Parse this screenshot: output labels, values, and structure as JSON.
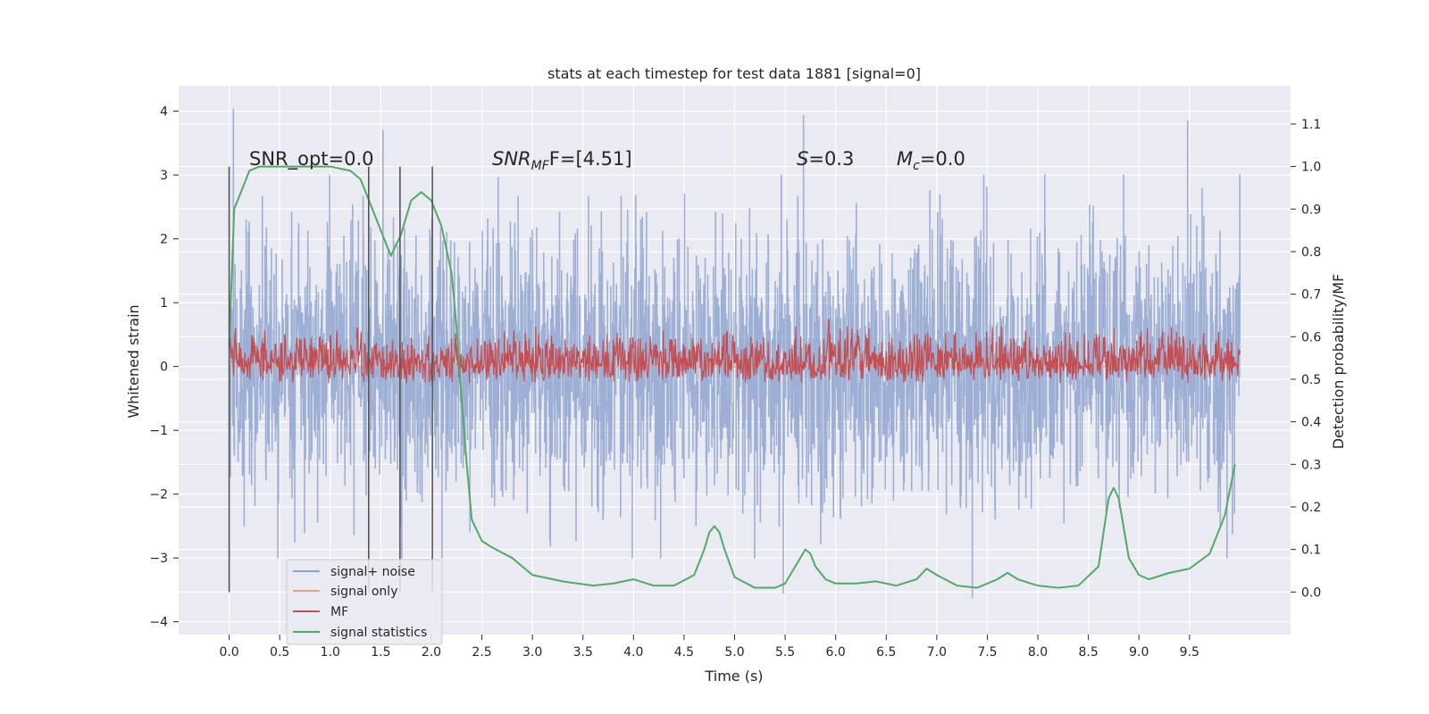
{
  "chart_data": {
    "type": "line",
    "title": "stats at each timestep for test data 1881 [signal=0]",
    "xlabel": "Time (s)",
    "ylabel_left": "Whitened strain",
    "ylabel_right": "Detection probability/MF",
    "xlim": [
      -0.5,
      10.5
    ],
    "ylim_left": [
      -4.2,
      4.4
    ],
    "ylim_right": [
      -0.1,
      1.19
    ],
    "x_ticks": [
      "0.0",
      "0.5",
      "1.0",
      "1.5",
      "2.0",
      "2.5",
      "3.0",
      "3.5",
      "4.0",
      "4.5",
      "5.0",
      "5.5",
      "6.0",
      "6.5",
      "7.0",
      "7.5",
      "8.0",
      "8.5",
      "9.0",
      "9.5"
    ],
    "y_ticks_left": [
      "4",
      "3",
      "2",
      "1",
      "0",
      "−1",
      "−2",
      "−3",
      "−4"
    ],
    "y_ticks_right": [
      "1.1",
      "1.0",
      "0.9",
      "0.8",
      "0.7",
      "0.6",
      "0.5",
      "0.4",
      "0.3",
      "0.2",
      "0.1",
      "0.0"
    ],
    "grid": true,
    "legend": {
      "position": "lower-left",
      "entries": [
        {
          "label": "signal+ noise",
          "color": "#8FA4CF"
        },
        {
          "label": "signal only",
          "color": "#E8A08A"
        },
        {
          "label": "MF",
          "color": "#C44E52"
        },
        {
          "label": "signal statistics",
          "color": "#55A868"
        }
      ]
    },
    "annotations": {
      "snr_opt": "SNR_opt=0.0",
      "snr_mf_base": "SNR",
      "snr_mf_sub": "MF",
      "snr_mf_rest": "F=[4.51]",
      "s_base": "S",
      "s_rest": "=0.3",
      "mc_base": "M",
      "mc_sub": "c",
      "mc_rest": "=0.0"
    },
    "vertical_markers": [
      0.0,
      1.38,
      1.69,
      2.01
    ],
    "series": [
      {
        "name": "signal+ noise",
        "axis": "left",
        "color": "#8FA4CF",
        "x_range": [
          0.0,
          10.0
        ],
        "envelope_typical": [
          -1.7,
          2.6
        ],
        "peaks": [
          [
            0.04,
            4.03
          ],
          [
            1.52,
            3.7
          ],
          [
            5.68,
            3.93
          ],
          [
            9.48,
            3.85
          ],
          [
            5.48,
            -3.55
          ],
          [
            7.35,
            -3.62
          ]
        ]
      },
      {
        "name": "signal only",
        "axis": "left",
        "color": "#E8A08A",
        "x": [
          0.0,
          10.0
        ],
        "y": [
          0.0,
          0.0
        ]
      },
      {
        "name": "MF",
        "axis": "right",
        "color": "#C44E52",
        "x_range": [
          0.0,
          10.0
        ],
        "band_typical": [
          0.48,
          0.58
        ],
        "peaks": [
          [
            5.93,
            0.64
          ],
          [
            1.27,
            0.62
          ],
          [
            7.55,
            0.62
          ]
        ]
      },
      {
        "name": "signal statistics",
        "axis": "right",
        "color": "#55A868",
        "x": [
          0.0,
          0.05,
          0.1,
          0.2,
          0.3,
          0.5,
          0.8,
          1.0,
          1.2,
          1.3,
          1.4,
          1.5,
          1.6,
          1.7,
          1.8,
          1.9,
          2.0,
          2.1,
          2.2,
          2.25,
          2.3,
          2.35,
          2.4,
          2.5,
          2.6,
          2.8,
          3.0,
          3.3,
          3.6,
          3.8,
          4.0,
          4.2,
          4.4,
          4.6,
          4.7,
          4.75,
          4.8,
          4.85,
          4.9,
          5.0,
          5.2,
          5.4,
          5.5,
          5.6,
          5.7,
          5.75,
          5.8,
          5.9,
          6.0,
          6.2,
          6.4,
          6.6,
          6.8,
          6.9,
          7.0,
          7.2,
          7.4,
          7.6,
          7.7,
          7.8,
          8.0,
          8.2,
          8.4,
          8.6,
          8.7,
          8.75,
          8.8,
          8.85,
          8.9,
          9.0,
          9.1,
          9.3,
          9.5,
          9.7,
          9.85,
          9.95
        ],
        "y": [
          0.58,
          0.9,
          0.93,
          0.99,
          1.0,
          1.0,
          1.0,
          1.0,
          0.99,
          0.97,
          0.91,
          0.85,
          0.79,
          0.84,
          0.92,
          0.94,
          0.92,
          0.86,
          0.75,
          0.62,
          0.45,
          0.3,
          0.17,
          0.12,
          0.105,
          0.08,
          0.04,
          0.025,
          0.015,
          0.02,
          0.03,
          0.015,
          0.015,
          0.04,
          0.1,
          0.14,
          0.155,
          0.14,
          0.1,
          0.035,
          0.01,
          0.01,
          0.02,
          0.06,
          0.1,
          0.09,
          0.06,
          0.03,
          0.02,
          0.02,
          0.025,
          0.015,
          0.03,
          0.055,
          0.04,
          0.015,
          0.01,
          0.03,
          0.045,
          0.03,
          0.015,
          0.01,
          0.015,
          0.06,
          0.22,
          0.245,
          0.22,
          0.15,
          0.08,
          0.04,
          0.03,
          0.045,
          0.055,
          0.09,
          0.18,
          0.3
        ]
      }
    ]
  }
}
